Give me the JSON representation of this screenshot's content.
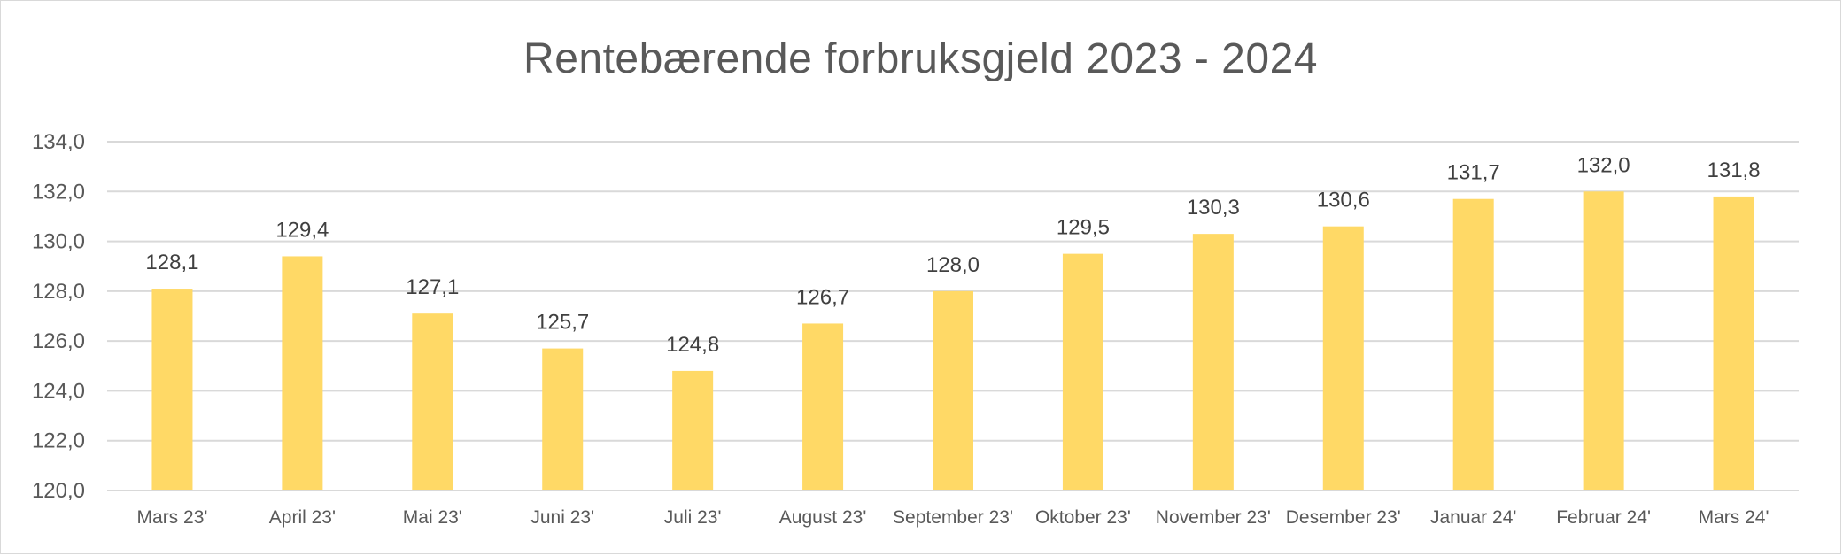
{
  "chart_data": {
    "type": "bar",
    "title": "Rentebærende forbruksgjeld 2023 - 2024",
    "xlabel": "",
    "ylabel": "",
    "categories": [
      "Mars 23'",
      "April 23'",
      "Mai 23'",
      "Juni 23'",
      "Juli 23'",
      "August 23'",
      "September 23'",
      "Oktober 23'",
      "November 23'",
      "Desember 23'",
      "Januar 24'",
      "Februar 24'",
      "Mars 24'"
    ],
    "values": [
      128.1,
      129.4,
      127.1,
      125.7,
      124.8,
      126.7,
      128.0,
      129.5,
      130.3,
      130.6,
      131.7,
      132.0,
      131.8
    ],
    "data_labels": [
      "128,1",
      "129,4",
      "127,1",
      "125,7",
      "124,8",
      "126,7",
      "128,0",
      "129,5",
      "130,3",
      "130,6",
      "131,7",
      "132,0",
      "131,8"
    ],
    "yticks": [
      120,
      122,
      124,
      126,
      128,
      130,
      132,
      134
    ],
    "ytick_labels": [
      "120,0",
      "122,0",
      "124,0",
      "126,0",
      "128,0",
      "130,0",
      "132,0",
      "134,0"
    ],
    "ylim": [
      120,
      134
    ],
    "grid": true,
    "legend": "none",
    "colors": {
      "bar": "#FFD966",
      "grid": "#d9d9d9",
      "text": "#595959"
    }
  }
}
